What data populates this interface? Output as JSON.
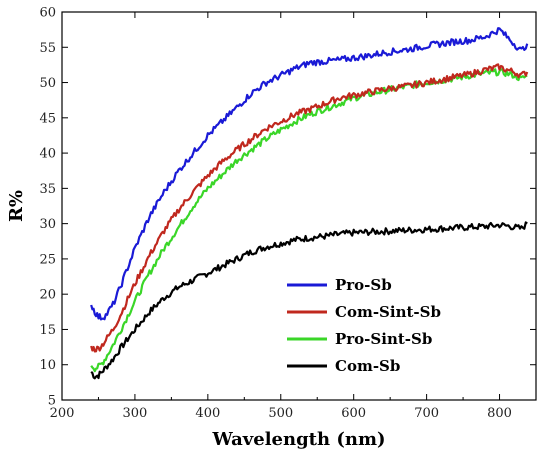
{
  "chart_data": {
    "type": "line",
    "title": "",
    "xlabel": "Wavelength (nm)",
    "ylabel": "R%",
    "xlim": [
      200,
      850
    ],
    "ylim": [
      5,
      60
    ],
    "xticks": [
      200,
      300,
      400,
      500,
      600,
      700,
      800
    ],
    "yticks": [
      5,
      10,
      15,
      20,
      25,
      30,
      35,
      40,
      45,
      50,
      55,
      60
    ],
    "grid": false,
    "legend": "lower-right",
    "series": [
      {
        "name": "Pro-Sb",
        "color": "#1a1ad6",
        "x": [
          240,
          245,
          250,
          255,
          260,
          270,
          280,
          300,
          320,
          340,
          360,
          380,
          400,
          420,
          440,
          460,
          480,
          500,
          520,
          540,
          560,
          580,
          600,
          620,
          640,
          660,
          680,
          700,
          720,
          740,
          760,
          780,
          800,
          810,
          820,
          830,
          838
        ],
        "y": [
          18.5,
          17.5,
          16.8,
          16.7,
          17.0,
          18.5,
          21.0,
          26.5,
          31.0,
          34.5,
          37.5,
          40.0,
          42.5,
          44.5,
          46.5,
          48.5,
          50.0,
          51.0,
          52.0,
          52.8,
          53.0,
          53.2,
          53.5,
          53.8,
          54.2,
          54.5,
          54.8,
          55.2,
          55.5,
          55.8,
          56.0,
          56.5,
          57.5,
          56.5,
          55.5,
          54.5,
          55.5
        ]
      },
      {
        "name": "Com-Sint-Sb",
        "color": "#c0281e",
        "x": [
          240,
          245,
          250,
          255,
          260,
          270,
          280,
          300,
          320,
          340,
          360,
          380,
          400,
          420,
          440,
          460,
          480,
          500,
          520,
          540,
          560,
          580,
          600,
          620,
          640,
          660,
          680,
          700,
          720,
          740,
          760,
          780,
          800,
          810,
          820,
          830,
          838
        ],
        "y": [
          12.5,
          12.2,
          12.3,
          12.8,
          13.5,
          15.0,
          17.0,
          21.5,
          25.5,
          29.0,
          32.0,
          34.5,
          36.8,
          38.8,
          40.5,
          42.0,
          43.5,
          44.5,
          45.5,
          46.2,
          47.0,
          47.8,
          48.2,
          48.6,
          49.0,
          49.3,
          49.6,
          50.0,
          50.4,
          50.8,
          51.2,
          51.8,
          52.2,
          51.8,
          51.5,
          51.0,
          51.5
        ]
      },
      {
        "name": "Pro-Sint-Sb",
        "color": "#3ad628",
        "x": [
          240,
          245,
          250,
          255,
          260,
          270,
          280,
          300,
          320,
          340,
          360,
          380,
          400,
          420,
          440,
          460,
          480,
          500,
          520,
          540,
          560,
          580,
          600,
          620,
          640,
          660,
          680,
          700,
          720,
          740,
          760,
          780,
          800,
          810,
          820,
          830,
          838
        ],
        "y": [
          10.0,
          9.5,
          9.7,
          10.2,
          11.0,
          12.8,
          14.8,
          19.0,
          23.0,
          26.5,
          29.5,
          32.5,
          35.0,
          37.0,
          39.0,
          40.5,
          42.0,
          43.3,
          44.5,
          45.5,
          46.3,
          47.0,
          47.8,
          48.3,
          48.8,
          49.2,
          49.6,
          50.0,
          50.3,
          50.6,
          51.0,
          51.3,
          51.5,
          51.3,
          51.0,
          50.5,
          51.0
        ]
      },
      {
        "name": "Com-Sb",
        "color": "#000000",
        "x": [
          240,
          245,
          250,
          255,
          260,
          270,
          280,
          300,
          320,
          340,
          360,
          380,
          400,
          420,
          440,
          460,
          480,
          500,
          520,
          540,
          560,
          580,
          600,
          620,
          640,
          660,
          680,
          700,
          720,
          740,
          760,
          780,
          800,
          810,
          820,
          830,
          838
        ],
        "y": [
          9.0,
          8.3,
          8.5,
          9.0,
          9.6,
          10.8,
          12.3,
          15.0,
          17.5,
          19.5,
          21.0,
          22.0,
          23.0,
          24.0,
          25.0,
          26.0,
          26.7,
          27.2,
          27.7,
          28.0,
          28.2,
          28.5,
          28.7,
          28.8,
          28.9,
          29.0,
          29.1,
          29.2,
          29.3,
          29.4,
          29.5,
          29.6,
          29.8,
          29.7,
          29.5,
          29.3,
          30.0
        ]
      }
    ]
  }
}
